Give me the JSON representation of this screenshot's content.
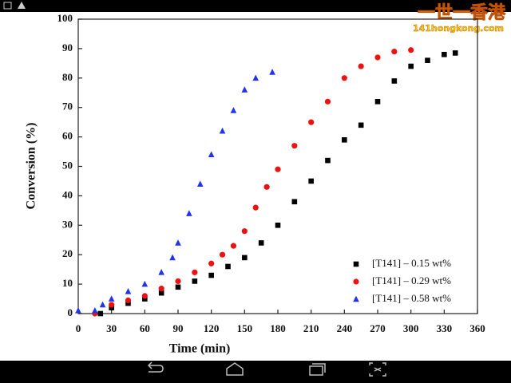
{
  "watermark": {
    "title": "一世一香港",
    "site": "141hongkong.com"
  },
  "chart_data": {
    "type": "scatter",
    "xlabel": "Time (min)",
    "ylabel": "Conversion (%)",
    "xlim": [
      0,
      360
    ],
    "xticks": [
      0,
      30,
      60,
      90,
      120,
      150,
      180,
      210,
      240,
      270,
      300,
      330,
      360
    ],
    "ylim": [
      0,
      100
    ],
    "yticks": [
      0,
      10,
      20,
      30,
      40,
      50,
      60,
      70,
      80,
      90,
      100
    ],
    "legend": "lower right",
    "series": [
      {
        "name": "[T141] – 0.15 wt%",
        "color": "#000000",
        "marker": "square",
        "x": [
          20,
          30,
          45,
          60,
          75,
          90,
          105,
          120,
          135,
          150,
          165,
          180,
          195,
          210,
          225,
          240,
          255,
          270,
          285,
          300,
          315,
          330,
          340
        ],
        "values": [
          0,
          2,
          3.5,
          5,
          7,
          9,
          11,
          13,
          16,
          19,
          24,
          30,
          38,
          45,
          52,
          59,
          64,
          72,
          79,
          84,
          86,
          88,
          88.5
        ]
      },
      {
        "name": "[T141] – 0.29 wt%",
        "color": "#ee1111",
        "marker": "circle",
        "x": [
          15,
          30,
          45,
          60,
          75,
          90,
          105,
          120,
          130,
          140,
          150,
          160,
          170,
          180,
          195,
          210,
          225,
          240,
          255,
          270,
          285,
          300
        ],
        "values": [
          0,
          3,
          4.5,
          6,
          8.5,
          11,
          14,
          17,
          20,
          23,
          28,
          36,
          43,
          49,
          57,
          65,
          72,
          80,
          84,
          87,
          89,
          89.5
        ]
      },
      {
        "name": "[T141] – 0.58 wt%",
        "color": "#2233ee",
        "marker": "triangle",
        "x": [
          0,
          15,
          22,
          30,
          45,
          60,
          75,
          85,
          90,
          100,
          110,
          120,
          130,
          140,
          150,
          160,
          175
        ],
        "values": [
          1,
          1,
          3,
          5,
          7.5,
          10,
          14,
          19,
          24,
          34,
          44,
          54,
          62,
          69,
          76,
          80,
          82
        ]
      }
    ]
  }
}
